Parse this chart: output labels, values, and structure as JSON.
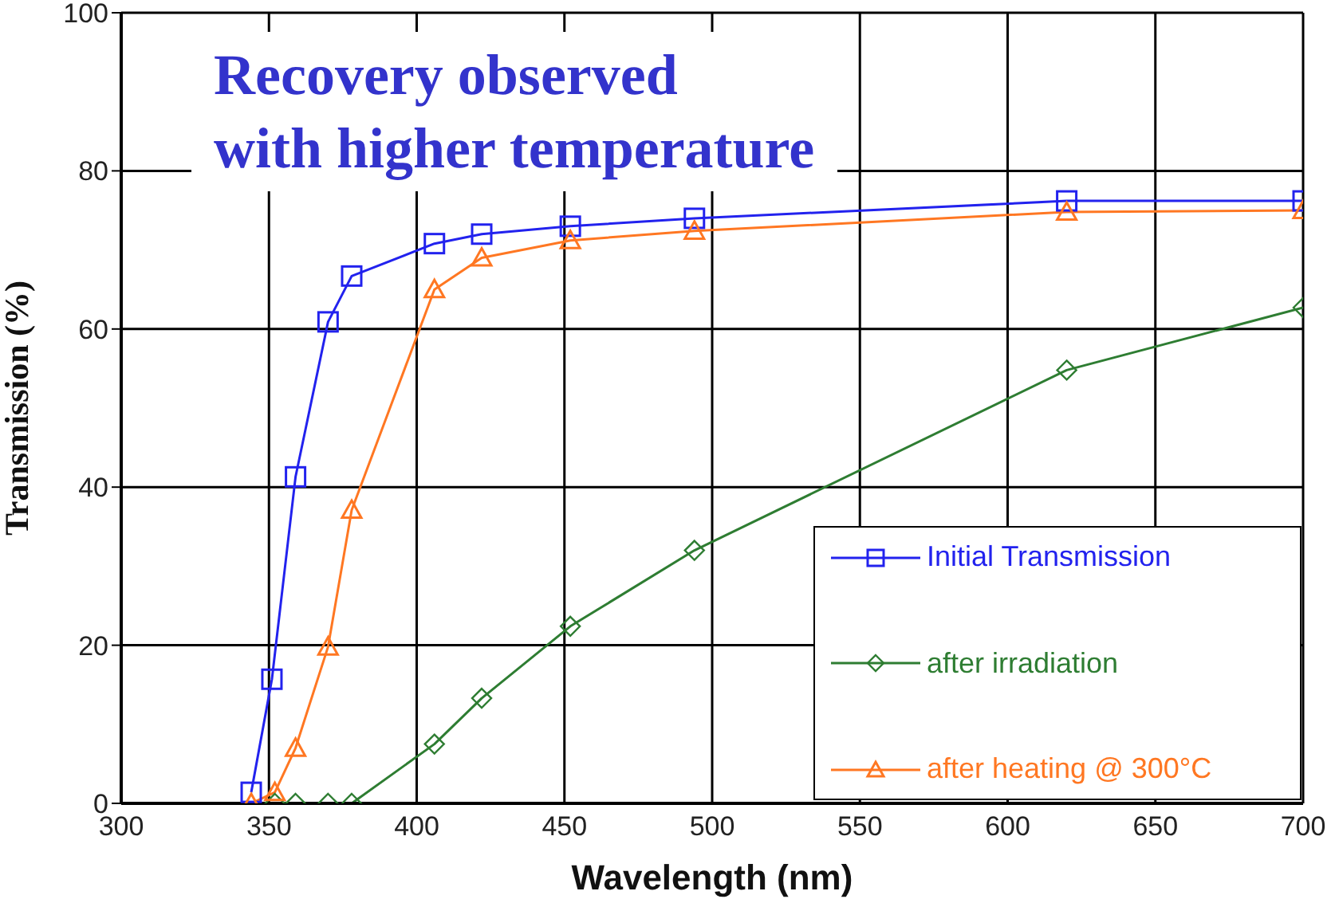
{
  "chart_data": {
    "type": "line",
    "title": "Recovery observed\nwith higher temperature",
    "xlabel": "Wavelength (nm)",
    "ylabel": "Transmission (%)",
    "xlim": [
      300,
      700
    ],
    "xticks": [
      300,
      350,
      400,
      450,
      500,
      550,
      600,
      650,
      700
    ],
    "ylim": [
      0,
      100
    ],
    "yticks": [
      0,
      20,
      40,
      60,
      80,
      100
    ],
    "grid": true,
    "legend": "bottom right",
    "series": [
      {
        "name": "Initial Transmission",
        "color": "#2222ee",
        "marker": "square",
        "x": [
          344,
          351,
          359,
          370,
          378,
          406,
          422,
          452,
          494,
          620,
          700
        ],
        "values": [
          1.4,
          15.7,
          41.3,
          60.9,
          66.7,
          70.8,
          72,
          73,
          74,
          76.2,
          76.2
        ]
      },
      {
        "name": "after irradiation",
        "color": "#2e7d32",
        "marker": "diamond",
        "x": [
          352,
          359,
          370,
          378,
          406,
          422,
          452,
          494,
          620,
          700
        ],
        "values": [
          0,
          0,
          0,
          0,
          7.5,
          13.3,
          22.4,
          32,
          54.8,
          62.7
        ]
      },
      {
        "name": "after heating @ 300°C",
        "color": "#ff7722",
        "marker": "triangle",
        "x": [
          344,
          352,
          359,
          370,
          378,
          406,
          422,
          452,
          494,
          620,
          700
        ],
        "values": [
          0,
          1.4,
          7,
          19.8,
          37.1,
          65,
          69,
          71.2,
          72.4,
          74.8,
          75
        ]
      }
    ]
  }
}
